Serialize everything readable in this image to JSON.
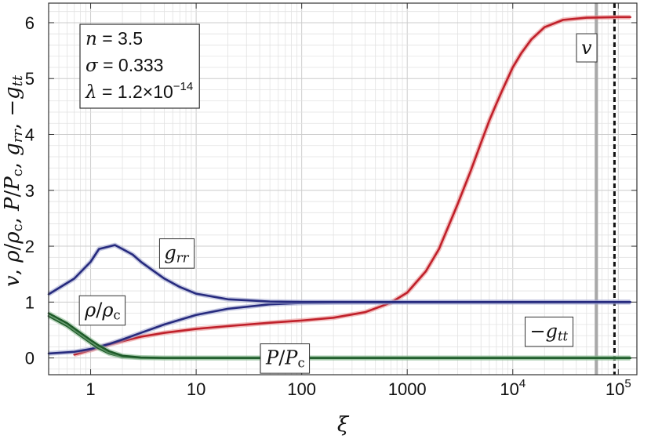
{
  "chart_data": {
    "type": "line",
    "xscale": "log",
    "xlim": [
      0.4,
      150000
    ],
    "ylim": [
      -0.3,
      6.35
    ],
    "grid": true,
    "xlabel": "ξ",
    "ylabel": {
      "parts": [
        {
          "t": "v",
          "i": true
        },
        {
          "t": ",  ",
          "i": false
        },
        {
          "t": "ρ",
          "i": true
        },
        {
          "t": "/",
          "i": false
        },
        {
          "t": "ρ",
          "i": true
        },
        {
          "t": "c",
          "i": false,
          "sub": true
        },
        {
          "t": ",  ",
          "i": false
        },
        {
          "t": "P",
          "i": true
        },
        {
          "t": "/",
          "i": false
        },
        {
          "t": "P",
          "i": true
        },
        {
          "t": "c",
          "i": false,
          "sub": true
        },
        {
          "t": ",  ",
          "i": false
        },
        {
          "t": "g",
          "i": true
        },
        {
          "t": "rr",
          "i": true,
          "sub": true
        },
        {
          "t": ",  ",
          "i": false
        },
        {
          "t": "−",
          "i": false
        },
        {
          "t": "g",
          "i": true
        },
        {
          "t": "tt",
          "i": true,
          "sub": true
        }
      ]
    },
    "xticks": [
      {
        "value": 1,
        "label": "1"
      },
      {
        "value": 10,
        "label": "10"
      },
      {
        "value": 100,
        "label": "100"
      },
      {
        "value": 1000,
        "label": "1000"
      },
      {
        "value": 10000,
        "base": "10",
        "exp": "4"
      },
      {
        "value": 100000,
        "base": "10",
        "exp": "5"
      }
    ],
    "yticks": [
      0,
      1,
      2,
      3,
      4,
      5,
      6
    ],
    "params": {
      "n": "3.5",
      "sigma": "0.333",
      "lambda_mantissa": "1.2",
      "lambda_exp": "−14"
    },
    "vlines": [
      {
        "x": 62000,
        "color": "#a8a8a8",
        "style": "solid"
      },
      {
        "x": 92000,
        "color": "#111111",
        "style": "dashed"
      }
    ],
    "series": [
      {
        "color": "#c0202a",
        "glow": "#e88a8a",
        "points": [
          [
            0.7,
            0.06
          ],
          [
            1,
            0.14
          ],
          [
            1.5,
            0.24
          ],
          [
            2,
            0.3
          ],
          [
            3,
            0.38
          ],
          [
            5,
            0.45
          ],
          [
            10,
            0.52
          ],
          [
            20,
            0.57
          ],
          [
            50,
            0.63
          ],
          [
            100,
            0.67
          ],
          [
            200,
            0.72
          ],
          [
            400,
            0.82
          ],
          [
            700,
            0.99
          ],
          [
            1000,
            1.17
          ],
          [
            1500,
            1.55
          ],
          [
            2000,
            1.95
          ],
          [
            3000,
            2.75
          ],
          [
            4000,
            3.35
          ],
          [
            5000,
            3.85
          ],
          [
            6000,
            4.25
          ],
          [
            7000,
            4.55
          ],
          [
            8000,
            4.8
          ],
          [
            10000,
            5.2
          ],
          [
            12000,
            5.45
          ],
          [
            15000,
            5.7
          ],
          [
            20000,
            5.92
          ],
          [
            30000,
            6.05
          ],
          [
            50000,
            6.09
          ],
          [
            100000,
            6.1
          ],
          [
            130000,
            6.1
          ]
        ]
      },
      {
        "color": "#262a7e",
        "glow": "#9aa0cc",
        "points": [
          [
            0.4,
            0.08
          ],
          [
            0.7,
            0.11
          ],
          [
            1,
            0.16
          ],
          [
            1.5,
            0.25
          ],
          [
            2,
            0.33
          ],
          [
            3,
            0.45
          ],
          [
            5,
            0.6
          ],
          [
            10,
            0.77
          ],
          [
            20,
            0.88
          ],
          [
            50,
            0.96
          ],
          [
            100,
            0.985
          ],
          [
            200,
            0.993
          ],
          [
            1000,
            0.998
          ],
          [
            10000,
            0.999
          ],
          [
            130000,
            1.0
          ]
        ]
      },
      {
        "color": "#262a7e",
        "glow": "#9aa0cc",
        "points": [
          [
            0.4,
            1.14
          ],
          [
            0.7,
            1.42
          ],
          [
            1,
            1.72
          ],
          [
            1.2,
            1.95
          ],
          [
            1.7,
            2.02
          ],
          [
            2,
            1.95
          ],
          [
            2.5,
            1.85
          ],
          [
            3,
            1.72
          ],
          [
            4,
            1.55
          ],
          [
            5,
            1.42
          ],
          [
            7,
            1.27
          ],
          [
            10,
            1.15
          ],
          [
            20,
            1.05
          ],
          [
            50,
            1.01
          ],
          [
            100,
            1.003
          ],
          [
            1000,
            1.0
          ],
          [
            130000,
            1.0
          ]
        ]
      },
      {
        "color": "#1d5a28",
        "glow": "#86b88e",
        "points": [
          [
            0.4,
            0.75
          ],
          [
            0.6,
            0.57
          ],
          [
            0.8,
            0.4
          ],
          [
            1,
            0.27
          ],
          [
            1.2,
            0.17
          ],
          [
            1.5,
            0.08
          ],
          [
            2,
            0.02
          ],
          [
            3,
            0.003
          ],
          [
            5,
            0.0
          ],
          [
            130000,
            0.0
          ]
        ]
      },
      {
        "color": "#1d5a28",
        "glow": "#86b88e",
        "points": [
          [
            0.4,
            0.8
          ],
          [
            0.6,
            0.62
          ],
          [
            0.8,
            0.45
          ],
          [
            1,
            0.32
          ],
          [
            1.2,
            0.22
          ],
          [
            1.5,
            0.12
          ],
          [
            2,
            0.04
          ],
          [
            3,
            0.008
          ],
          [
            5,
            0.0
          ],
          [
            130000,
            0.0
          ]
        ]
      }
    ],
    "labels": [
      {
        "id": "v",
        "x": 50000,
        "y": 5.55,
        "parts": [
          {
            "t": "v",
            "i": true
          }
        ]
      },
      {
        "id": "grr",
        "x": 6.5,
        "y": 1.88,
        "parts": [
          {
            "t": "g",
            "i": true
          },
          {
            "t": "rr",
            "i": true,
            "sub": true
          }
        ]
      },
      {
        "id": "rho",
        "x": 1.3,
        "y": 0.86,
        "parts": [
          {
            "t": "ρ",
            "i": true
          },
          {
            "t": "/",
            "i": false
          },
          {
            "t": "ρ",
            "i": true
          },
          {
            "t": "c",
            "i": false,
            "sub": true
          }
        ]
      },
      {
        "id": "negtt",
        "x": 22000,
        "y": 0.48,
        "parts": [
          {
            "t": "−",
            "i": false
          },
          {
            "t": "g",
            "i": true
          },
          {
            "t": "tt",
            "i": true,
            "sub": true
          }
        ]
      },
      {
        "id": "p",
        "x": 70,
        "y": 0.0,
        "parts": [
          {
            "t": "P",
            "i": true
          },
          {
            "t": "/",
            "i": false
          },
          {
            "t": "P",
            "i": true
          },
          {
            "t": "c",
            "i": false,
            "sub": true
          }
        ]
      }
    ]
  }
}
